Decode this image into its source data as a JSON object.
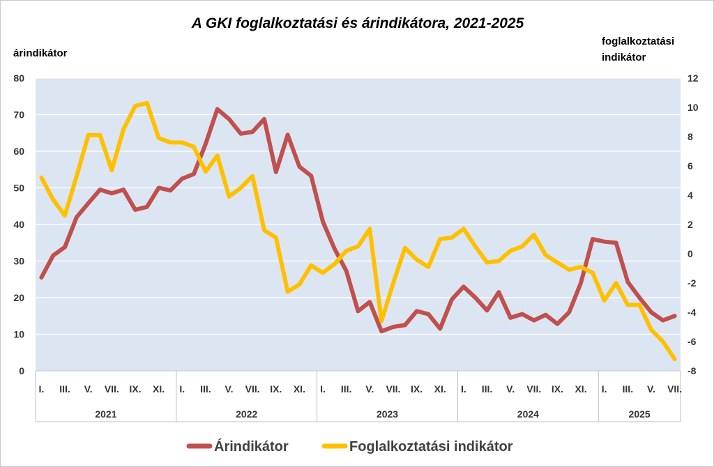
{
  "chart_data": {
    "type": "line",
    "title": "A GKI foglalkoztatási és árindikátora, 2021-2025",
    "y_left_label": "árindikátor",
    "y_right_label_lines": [
      "foglalkoztatási",
      "indikátor"
    ],
    "y_left_ticks": [
      "0",
      "10",
      "20",
      "30",
      "40",
      "50",
      "60",
      "70",
      "80"
    ],
    "y_right_ticks": [
      "-8",
      "-6",
      "-4",
      "-2",
      "0",
      "2",
      "4",
      "6",
      "8",
      "10",
      "12"
    ],
    "ylim_left": [
      0,
      80
    ],
    "ylim_right": [
      -8,
      12
    ],
    "month_labels": [
      {
        "index": 0,
        "label": "I."
      },
      {
        "index": 2,
        "label": "III."
      },
      {
        "index": 4,
        "label": "V."
      },
      {
        "index": 6,
        "label": "VII."
      },
      {
        "index": 8,
        "label": "IX."
      },
      {
        "index": 10,
        "label": "XI."
      },
      {
        "index": 12,
        "label": "I."
      },
      {
        "index": 14,
        "label": "III."
      },
      {
        "index": 16,
        "label": "V."
      },
      {
        "index": 18,
        "label": "VII."
      },
      {
        "index": 20,
        "label": "IX."
      },
      {
        "index": 22,
        "label": "XI."
      },
      {
        "index": 24,
        "label": "I."
      },
      {
        "index": 26,
        "label": "III."
      },
      {
        "index": 28,
        "label": "V."
      },
      {
        "index": 30,
        "label": "VII."
      },
      {
        "index": 32,
        "label": "IX."
      },
      {
        "index": 34,
        "label": "XI."
      },
      {
        "index": 36,
        "label": "I."
      },
      {
        "index": 38,
        "label": "III."
      },
      {
        "index": 40,
        "label": "V."
      },
      {
        "index": 42,
        "label": "VII."
      },
      {
        "index": 44,
        "label": "IX."
      },
      {
        "index": 46,
        "label": "XI."
      },
      {
        "index": 48,
        "label": "I."
      },
      {
        "index": 50,
        "label": "III."
      },
      {
        "index": 52,
        "label": "V."
      },
      {
        "index": 54,
        "label": "VII."
      }
    ],
    "years": [
      {
        "label": "2021",
        "months": 12
      },
      {
        "label": "2022",
        "months": 12
      },
      {
        "label": "2023",
        "months": 12
      },
      {
        "label": "2024",
        "months": 12
      },
      {
        "label": "2025",
        "months": 7
      }
    ],
    "grid": true,
    "legend_position": "bottom",
    "series": [
      {
        "name": "Árindikátor",
        "axis": "left",
        "color": "#C0504D",
        "values": [
          25.5,
          31.5,
          33.8,
          42,
          45.8,
          49.5,
          48.5,
          49.5,
          44,
          44.8,
          50,
          49.3,
          52.5,
          53.8,
          62,
          71.5,
          68.8,
          64.8,
          65.3,
          68.8,
          54.3,
          64.5,
          55.8,
          53.3,
          40.8,
          33.3,
          27.3,
          16.3,
          18.8,
          10.8,
          12,
          12.5,
          16.3,
          15.5,
          11.5,
          19.5,
          23,
          20,
          16.5,
          21.5,
          14.5,
          15.5,
          13.8,
          15.3,
          12.8,
          16,
          24,
          36,
          35.3,
          35,
          24.3,
          20,
          16,
          13.8,
          15
        ]
      },
      {
        "name": "Foglalkoztatási indikátor",
        "axis": "right",
        "color": "#FFC000",
        "values": [
          5.2,
          3.7,
          2.6,
          5.3,
          8.1,
          8.1,
          5.7,
          8.5,
          10.1,
          10.3,
          7.9,
          7.6,
          7.6,
          7.3,
          5.6,
          6.7,
          3.9,
          4.5,
          5.3,
          1.6,
          1.1,
          -2.6,
          -2.1,
          -0.8,
          -1.3,
          -0.7,
          0.2,
          0.5,
          1.7,
          -4.6,
          -2,
          0.4,
          -0.4,
          -0.9,
          1,
          1.1,
          1.7,
          0.5,
          -0.6,
          -0.5,
          0.2,
          0.5,
          1.3,
          -0.1,
          -0.6,
          -1.1,
          -0.9,
          -1.3,
          -3.2,
          -2,
          -3.5,
          -3.5,
          -5.2,
          -6,
          -7.2
        ]
      }
    ]
  }
}
